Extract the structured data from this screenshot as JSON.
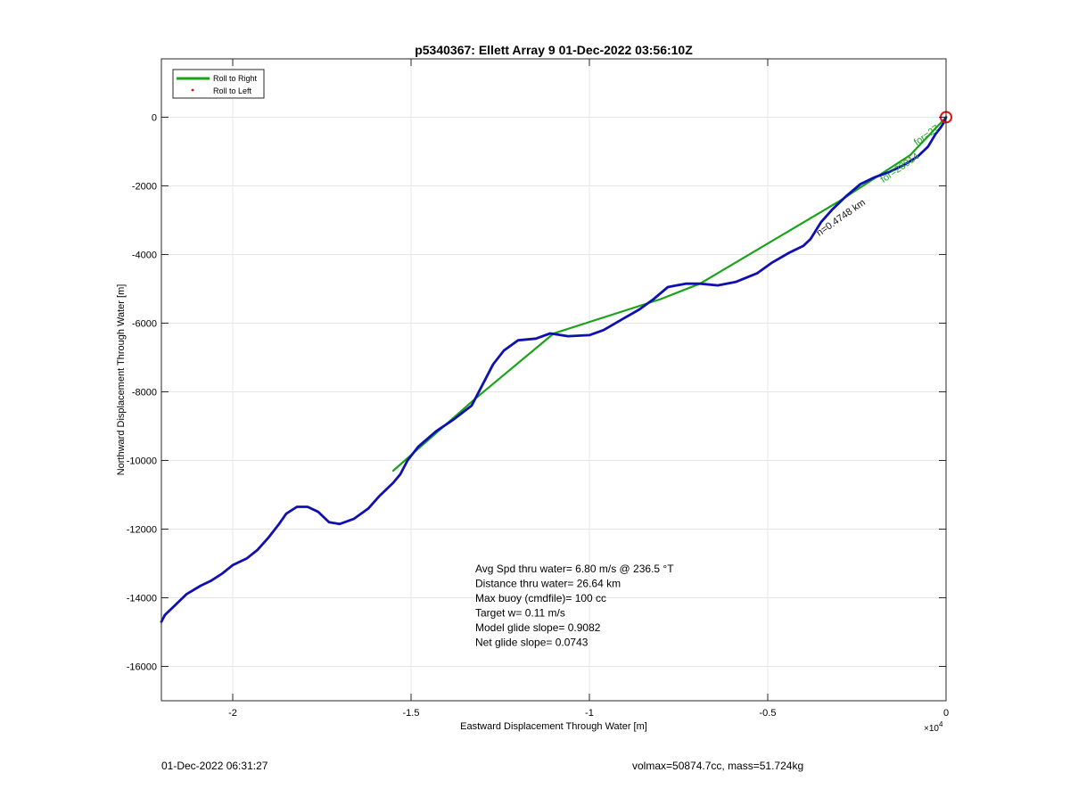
{
  "chart_data": {
    "type": "line",
    "title": "p5340367: Ellett Array 9 01-Dec-2022 03:56:10Z",
    "xlabel": "Eastward Displacement Through Water [m]",
    "ylabel": "Northward Displacement Through Water [m]",
    "x_exponent_label": "×10",
    "x_exponent_power": "4",
    "xlim": [
      -22000,
      0
    ],
    "ylim": [
      -17000,
      1700
    ],
    "x_ticks": [
      -20000,
      -15000,
      -10000,
      -5000,
      0
    ],
    "x_tick_labels": [
      "-2",
      "-1.5",
      "-1",
      "-0.5",
      "0"
    ],
    "y_ticks": [
      0,
      -2000,
      -4000,
      -6000,
      -8000,
      -10000,
      -12000,
      -14000,
      -16000
    ],
    "y_tick_labels": [
      "0",
      "-2000",
      "-4000",
      "-6000",
      "-8000",
      "-10000",
      "-12000",
      "-14000",
      "-16000"
    ],
    "grid": true,
    "legend_placement": "top-left",
    "legend": [
      {
        "name": "Roll to Right",
        "color": "#1aa31a",
        "style": "line"
      },
      {
        "name": "Roll to Left",
        "color": "#e01010",
        "style": "dot"
      }
    ],
    "series": [
      {
        "name": "Roll to Right",
        "color": "#1aa31a",
        "points": [
          [
            -15500,
            -10300
          ],
          [
            -13200,
            -8200
          ],
          [
            -11000,
            -6300
          ],
          [
            -8000,
            -5300
          ],
          [
            -6900,
            -4850
          ],
          [
            -3000,
            -2450
          ],
          [
            -1000,
            -1100
          ],
          [
            0,
            0
          ]
        ]
      },
      {
        "name": "track",
        "color": "#1010b0",
        "points": [
          [
            -22000,
            -14700
          ],
          [
            -21900,
            -14500
          ],
          [
            -21600,
            -14200
          ],
          [
            -21300,
            -13900
          ],
          [
            -20900,
            -13650
          ],
          [
            -20600,
            -13500
          ],
          [
            -20300,
            -13300
          ],
          [
            -20000,
            -13050
          ],
          [
            -19600,
            -12850
          ],
          [
            -19300,
            -12600
          ],
          [
            -19000,
            -12250
          ],
          [
            -18700,
            -11850
          ],
          [
            -18500,
            -11550
          ],
          [
            -18200,
            -11350
          ],
          [
            -17900,
            -11350
          ],
          [
            -17600,
            -11500
          ],
          [
            -17300,
            -11800
          ],
          [
            -17000,
            -11850
          ],
          [
            -16600,
            -11700
          ],
          [
            -16200,
            -11400
          ],
          [
            -15900,
            -11050
          ],
          [
            -15500,
            -10650
          ],
          [
            -15300,
            -10400
          ],
          [
            -15100,
            -10000
          ],
          [
            -14800,
            -9600
          ],
          [
            -14300,
            -9150
          ],
          [
            -13800,
            -8800
          ],
          [
            -13300,
            -8400
          ],
          [
            -13000,
            -7800
          ],
          [
            -12700,
            -7200
          ],
          [
            -12400,
            -6800
          ],
          [
            -12000,
            -6500
          ],
          [
            -11500,
            -6450
          ],
          [
            -11100,
            -6300
          ],
          [
            -10600,
            -6380
          ],
          [
            -10000,
            -6350
          ],
          [
            -9600,
            -6200
          ],
          [
            -9100,
            -5900
          ],
          [
            -8600,
            -5600
          ],
          [
            -8200,
            -5300
          ],
          [
            -7800,
            -4950
          ],
          [
            -7300,
            -4850
          ],
          [
            -6900,
            -4850
          ],
          [
            -6400,
            -4900
          ],
          [
            -5900,
            -4800
          ],
          [
            -5300,
            -4550
          ],
          [
            -4900,
            -4250
          ],
          [
            -4400,
            -3950
          ],
          [
            -4000,
            -3750
          ],
          [
            -3800,
            -3550
          ],
          [
            -3500,
            -3050
          ],
          [
            -3200,
            -2700
          ],
          [
            -2800,
            -2300
          ],
          [
            -2400,
            -1950
          ],
          [
            -2000,
            -1750
          ],
          [
            -1600,
            -1600
          ],
          [
            -1200,
            -1400
          ],
          [
            -800,
            -1150
          ],
          [
            -500,
            -850
          ],
          [
            -300,
            -500
          ],
          [
            -150,
            -300
          ],
          [
            -60,
            -150
          ],
          [
            0,
            0
          ]
        ]
      }
    ],
    "start_marker": {
      "x": 0,
      "y": 0,
      "color": "#e01010",
      "shape": "circle"
    },
    "annotations": [
      "Avg Spd thru water=  6.80 m/s @ 236.5 °T",
      "Distance thru water= 26.64 km",
      "Max buoy (cmdfile)= 100 cc",
      "Target w= 0.11 m/s",
      "Model glide slope= 0.9082",
      "Net glide slope= 0.0743"
    ],
    "track_labels": [
      {
        "text": "n=0.4748 km",
        "x": -2900,
        "y": -3000,
        "color": "#111111"
      },
      {
        "text": "for=28914",
        "x": -1250,
        "y": -1550,
        "color": "#1aa31a"
      },
      {
        "text": "for=27",
        "x": -500,
        "y": -600,
        "color": "#1aa31a"
      }
    ]
  },
  "footer": {
    "timestamp": "01-Dec-2022 06:31:27",
    "info": "volmax=50874.7cc, mass=51.724kg"
  }
}
